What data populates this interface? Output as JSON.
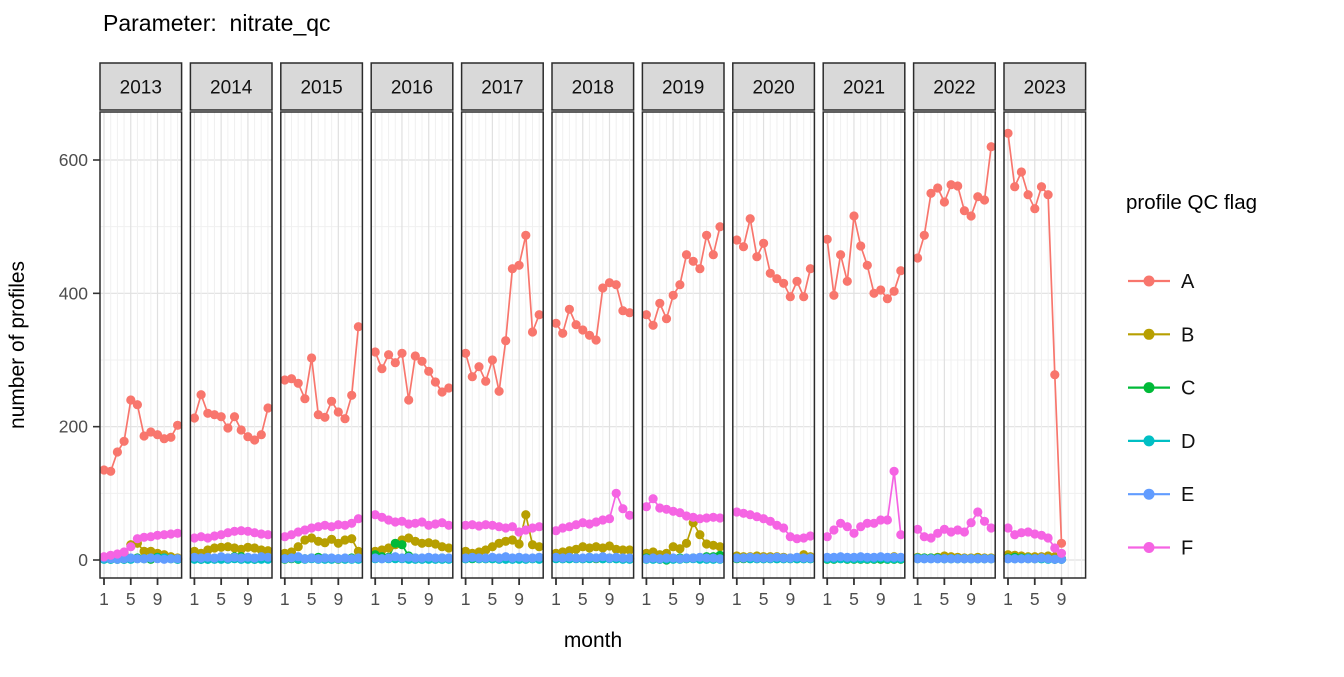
{
  "title": "Parameter:  nitrate_qc",
  "x_axis": {
    "label": "month",
    "tick_months": [
      1,
      5,
      9
    ],
    "tick_labels": [
      "1",
      "5",
      "9"
    ]
  },
  "y_axis": {
    "label": "number of profiles",
    "ticks": [
      0,
      200,
      400,
      600
    ],
    "minor_ticks": [
      100,
      300,
      500
    ]
  },
  "legend": {
    "title": "profile QC flag",
    "entries": [
      {
        "label": "A",
        "color": "#F8766D"
      },
      {
        "label": "B",
        "color": "#B79F00"
      },
      {
        "label": "C",
        "color": "#00BA38"
      },
      {
        "label": "D",
        "color": "#00BFC4"
      },
      {
        "label": "E",
        "color": "#619CFF"
      },
      {
        "label": "F",
        "color": "#F564E3"
      }
    ]
  },
  "colors": {
    "strip_fill": "#D9D9D9",
    "panel_fill": "#FFFFFF",
    "panel_border": "#2B2B2B",
    "grid_major": "#E0E0E0",
    "grid_minor": "#F0F0F0",
    "tick_mark": "#333333",
    "tick_text": "#4D4D4D"
  },
  "chart_data": {
    "type": "line",
    "title": "Parameter:  nitrate_qc",
    "xlabel": "month",
    "ylabel": "number of profiles",
    "facet_variable": "year",
    "series_names": [
      "A",
      "B",
      "C",
      "D",
      "E",
      "F"
    ],
    "ylim": [
      0,
      672
    ],
    "x_ticks": [
      1,
      5,
      9
    ],
    "grid": true,
    "legend_position": "right",
    "facets": [
      {
        "year": "2013",
        "months": [
          1,
          2,
          3,
          4,
          5,
          6,
          7,
          8,
          9,
          10,
          11,
          12
        ],
        "series": {
          "A": [
            135,
            133,
            162,
            178,
            240,
            233,
            186,
            192,
            188,
            182,
            184,
            202
          ],
          "B": [
            2,
            3,
            5,
            10,
            23,
            25,
            13,
            13,
            10,
            8,
            5,
            3
          ],
          "C": [
            2,
            1,
            1,
            1,
            2,
            3,
            2,
            1,
            4,
            3,
            2,
            1
          ],
          "D": [
            1,
            1,
            1,
            1,
            1,
            2,
            2,
            3,
            3,
            3,
            2,
            1
          ],
          "E": [
            3,
            2,
            1,
            2,
            3,
            2,
            2,
            3,
            2,
            1,
            2,
            2
          ],
          "F": [
            5,
            7,
            9,
            12,
            20,
            32,
            34,
            35,
            37,
            38,
            39,
            40
          ]
        }
      },
      {
        "year": "2014",
        "months": [
          1,
          2,
          3,
          4,
          5,
          6,
          7,
          8,
          9,
          10,
          11,
          12
        ],
        "series": {
          "A": [
            213,
            248,
            220,
            218,
            215,
            198,
            215,
            195,
            185,
            180,
            188,
            228
          ],
          "B": [
            13,
            10,
            15,
            18,
            19,
            20,
            18,
            16,
            19,
            18,
            15,
            14
          ],
          "C": [
            2,
            1,
            1,
            2,
            2,
            3,
            5,
            5,
            2,
            1,
            2,
            2
          ],
          "D": [
            1,
            1,
            1,
            1,
            1,
            1,
            2,
            1,
            1,
            1,
            1,
            1
          ],
          "E": [
            4,
            3,
            4,
            3,
            5,
            3,
            4,
            3,
            4,
            3,
            5,
            4
          ],
          "F": [
            33,
            35,
            33,
            36,
            38,
            41,
            43,
            44,
            43,
            41,
            39,
            38
          ]
        }
      },
      {
        "year": "2015",
        "months": [
          1,
          2,
          3,
          4,
          5,
          6,
          7,
          8,
          9,
          10,
          11,
          12
        ],
        "series": {
          "A": [
            270,
            272,
            265,
            242,
            303,
            218,
            214,
            238,
            222,
            212,
            247,
            350
          ],
          "B": [
            10,
            12,
            20,
            30,
            33,
            28,
            26,
            31,
            25,
            30,
            32,
            13
          ],
          "C": [
            1,
            2,
            1,
            2,
            3,
            4,
            3,
            2,
            1,
            2,
            3,
            2
          ],
          "D": [
            2,
            3,
            2,
            1,
            2,
            1,
            1,
            1,
            2,
            1,
            1,
            1
          ],
          "E": [
            2,
            3,
            5,
            2,
            3,
            2,
            3,
            3,
            2,
            3,
            2,
            3
          ],
          "F": [
            35,
            38,
            42,
            45,
            48,
            50,
            52,
            50,
            53,
            52,
            55,
            62
          ]
        }
      },
      {
        "year": "2016",
        "months": [
          1,
          2,
          3,
          4,
          5,
          6,
          7,
          8,
          9,
          10,
          11,
          12
        ],
        "series": {
          "A": [
            312,
            287,
            308,
            296,
            310,
            240,
            306,
            298,
            283,
            267,
            252,
            258
          ],
          "B": [
            13,
            15,
            18,
            23,
            30,
            33,
            28,
            25,
            26,
            24,
            20,
            18
          ],
          "C": [
            8,
            5,
            4,
            25,
            23,
            6,
            3,
            2,
            2,
            2,
            3,
            2
          ],
          "D": [
            2,
            2,
            2,
            2,
            2,
            1,
            1,
            1,
            1,
            1,
            1,
            1
          ],
          "E": [
            3,
            2,
            3,
            5,
            3,
            4,
            3,
            3,
            4,
            3,
            3,
            3
          ],
          "F": [
            68,
            64,
            60,
            57,
            58,
            54,
            55,
            57,
            52,
            54,
            56,
            52
          ]
        }
      },
      {
        "year": "2017",
        "months": [
          1,
          2,
          3,
          4,
          5,
          6,
          7,
          8,
          9,
          10,
          11,
          12
        ],
        "series": {
          "A": [
            310,
            275,
            290,
            268,
            300,
            253,
            329,
            437,
            442,
            487,
            342,
            368
          ],
          "B": [
            13,
            10,
            12,
            15,
            20,
            25,
            28,
            30,
            24,
            68,
            23,
            20
          ],
          "C": [
            2,
            2,
            2,
            2,
            2,
            2,
            2,
            2,
            2,
            2,
            2,
            3
          ],
          "D": [
            2,
            3,
            2,
            2,
            2,
            1,
            1,
            1,
            1,
            1,
            2,
            1
          ],
          "E": [
            3,
            4,
            3,
            3,
            4,
            3,
            5,
            3,
            4,
            3,
            3,
            4
          ],
          "F": [
            52,
            53,
            51,
            53,
            52,
            50,
            48,
            50,
            42,
            45,
            48,
            50
          ]
        }
      },
      {
        "year": "2018",
        "months": [
          1,
          2,
          3,
          4,
          5,
          6,
          7,
          8,
          9,
          10,
          11,
          12
        ],
        "series": {
          "A": [
            355,
            340,
            376,
            353,
            345,
            337,
            330,
            408,
            416,
            413,
            374,
            371
          ],
          "B": [
            10,
            12,
            14,
            16,
            20,
            18,
            20,
            18,
            21,
            16,
            15,
            15
          ],
          "C": [
            3,
            2,
            2,
            3,
            2,
            4,
            2,
            2,
            3,
            2,
            2,
            2
          ],
          "D": [
            2,
            2,
            2,
            2,
            2,
            2,
            3,
            2,
            2,
            2,
            1,
            1
          ],
          "E": [
            4,
            3,
            4,
            3,
            3,
            4,
            3,
            5,
            3,
            4,
            3,
            3
          ],
          "F": [
            44,
            48,
            50,
            53,
            56,
            54,
            57,
            60,
            62,
            100,
            77,
            67
          ]
        }
      },
      {
        "year": "2019",
        "months": [
          1,
          2,
          3,
          4,
          5,
          6,
          7,
          8,
          9,
          10,
          11,
          12
        ],
        "series": {
          "A": [
            368,
            352,
            385,
            362,
            397,
            413,
            458,
            448,
            437,
            487,
            458,
            500
          ],
          "B": [
            10,
            12,
            8,
            10,
            20,
            17,
            25,
            56,
            38,
            24,
            22,
            20
          ],
          "C": [
            3,
            2,
            1,
            0,
            2,
            3,
            2,
            3,
            3,
            5,
            5,
            7
          ],
          "D": [
            1,
            1,
            1,
            1,
            1,
            1,
            2,
            2,
            1,
            1,
            1,
            1
          ],
          "E": [
            2,
            3,
            2,
            3,
            3,
            2,
            3,
            3,
            4,
            3,
            3,
            2
          ],
          "F": [
            80,
            92,
            78,
            76,
            73,
            71,
            66,
            64,
            62,
            63,
            64,
            63
          ]
        }
      },
      {
        "year": "2020",
        "months": [
          1,
          2,
          3,
          4,
          5,
          6,
          7,
          8,
          9,
          10,
          11,
          12
        ],
        "series": {
          "A": [
            480,
            470,
            512,
            455,
            475,
            430,
            422,
            415,
            395,
            418,
            395,
            437
          ],
          "B": [
            6,
            5,
            5,
            6,
            5,
            5,
            5,
            4,
            3,
            2,
            8,
            5
          ],
          "C": [
            2,
            2,
            2,
            2,
            2,
            2,
            2,
            2,
            2,
            2,
            2,
            2
          ],
          "D": [
            3,
            3,
            2,
            2,
            2,
            2,
            2,
            2,
            2,
            2,
            2,
            2
          ],
          "E": [
            3,
            3,
            4,
            3,
            3,
            3,
            4,
            3,
            3,
            4,
            3,
            3
          ],
          "F": [
            72,
            70,
            68,
            65,
            62,
            58,
            52,
            48,
            35,
            32,
            33,
            36
          ]
        }
      },
      {
        "year": "2021",
        "months": [
          1,
          2,
          3,
          4,
          5,
          6,
          7,
          8,
          9,
          10,
          11,
          12
        ],
        "series": {
          "A": [
            481,
            397,
            458,
            418,
            516,
            471,
            442,
            400,
            405,
            392,
            403,
            434
          ],
          "B": [
            2,
            2,
            3,
            2,
            3,
            3,
            2,
            3,
            3,
            3,
            5,
            3
          ],
          "C": [
            1,
            1,
            2,
            1,
            1,
            1,
            1,
            1,
            1,
            1,
            1,
            1
          ],
          "D": [
            2,
            2,
            2,
            2,
            2,
            2,
            2,
            2,
            3,
            2,
            2,
            2
          ],
          "E": [
            4,
            4,
            5,
            4,
            4,
            5,
            4,
            4,
            5,
            4,
            4,
            4
          ],
          "F": [
            35,
            45,
            55,
            50,
            40,
            50,
            55,
            55,
            60,
            60,
            133,
            38
          ]
        }
      },
      {
        "year": "2022",
        "months": [
          1,
          2,
          3,
          4,
          5,
          6,
          7,
          8,
          9,
          10,
          11,
          12
        ],
        "series": {
          "A": [
            453,
            487,
            550,
            558,
            537,
            563,
            561,
            524,
            516,
            545,
            540,
            620
          ],
          "B": [
            4,
            3,
            3,
            4,
            6,
            5,
            4,
            3,
            3,
            4,
            3,
            3
          ],
          "C": [
            2,
            3,
            3,
            3,
            2,
            2,
            2,
            2,
            2,
            2,
            2,
            2
          ],
          "D": [
            3,
            2,
            2,
            2,
            2,
            2,
            2,
            2,
            2,
            2,
            2,
            2
          ],
          "E": [
            2,
            2,
            2,
            2,
            2,
            2,
            2,
            2,
            2,
            2,
            2,
            2
          ],
          "F": [
            46,
            35,
            33,
            40,
            46,
            42,
            45,
            42,
            56,
            72,
            58,
            48
          ]
        }
      },
      {
        "year": "2023",
        "months": [
          1,
          2,
          3,
          4,
          5,
          6,
          7,
          8,
          9
        ],
        "series": {
          "A": [
            640,
            560,
            582,
            548,
            527,
            560,
            548,
            278,
            25
          ],
          "B": [
            8,
            7,
            6,
            5,
            5,
            5,
            6,
            5,
            2
          ],
          "C": [
            3,
            4,
            3,
            2,
            2,
            2,
            2,
            1,
            1
          ],
          "D": [
            2,
            2,
            2,
            3,
            2,
            2,
            1,
            1,
            1
          ],
          "E": [
            2,
            2,
            2,
            2,
            2,
            3,
            2,
            1,
            1
          ],
          "F": [
            48,
            38,
            41,
            42,
            39,
            37,
            33,
            18,
            10
          ]
        }
      }
    ]
  }
}
